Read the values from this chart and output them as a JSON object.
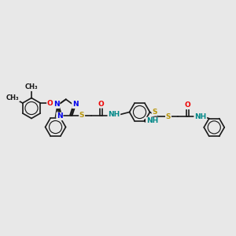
{
  "bg_color": "#e8e8e8",
  "bond_color": "#1a1a1a",
  "N_color": "#0000ee",
  "O_color": "#ee0000",
  "S_color": "#b8960c",
  "NH_color": "#008888",
  "bond_width": 1.2,
  "dbo": 0.06,
  "fs": 6.5,
  "figsize": [
    3.0,
    3.0
  ],
  "dpi": 100,
  "xlim": [
    0,
    12
  ],
  "ylim": [
    1,
    9
  ]
}
